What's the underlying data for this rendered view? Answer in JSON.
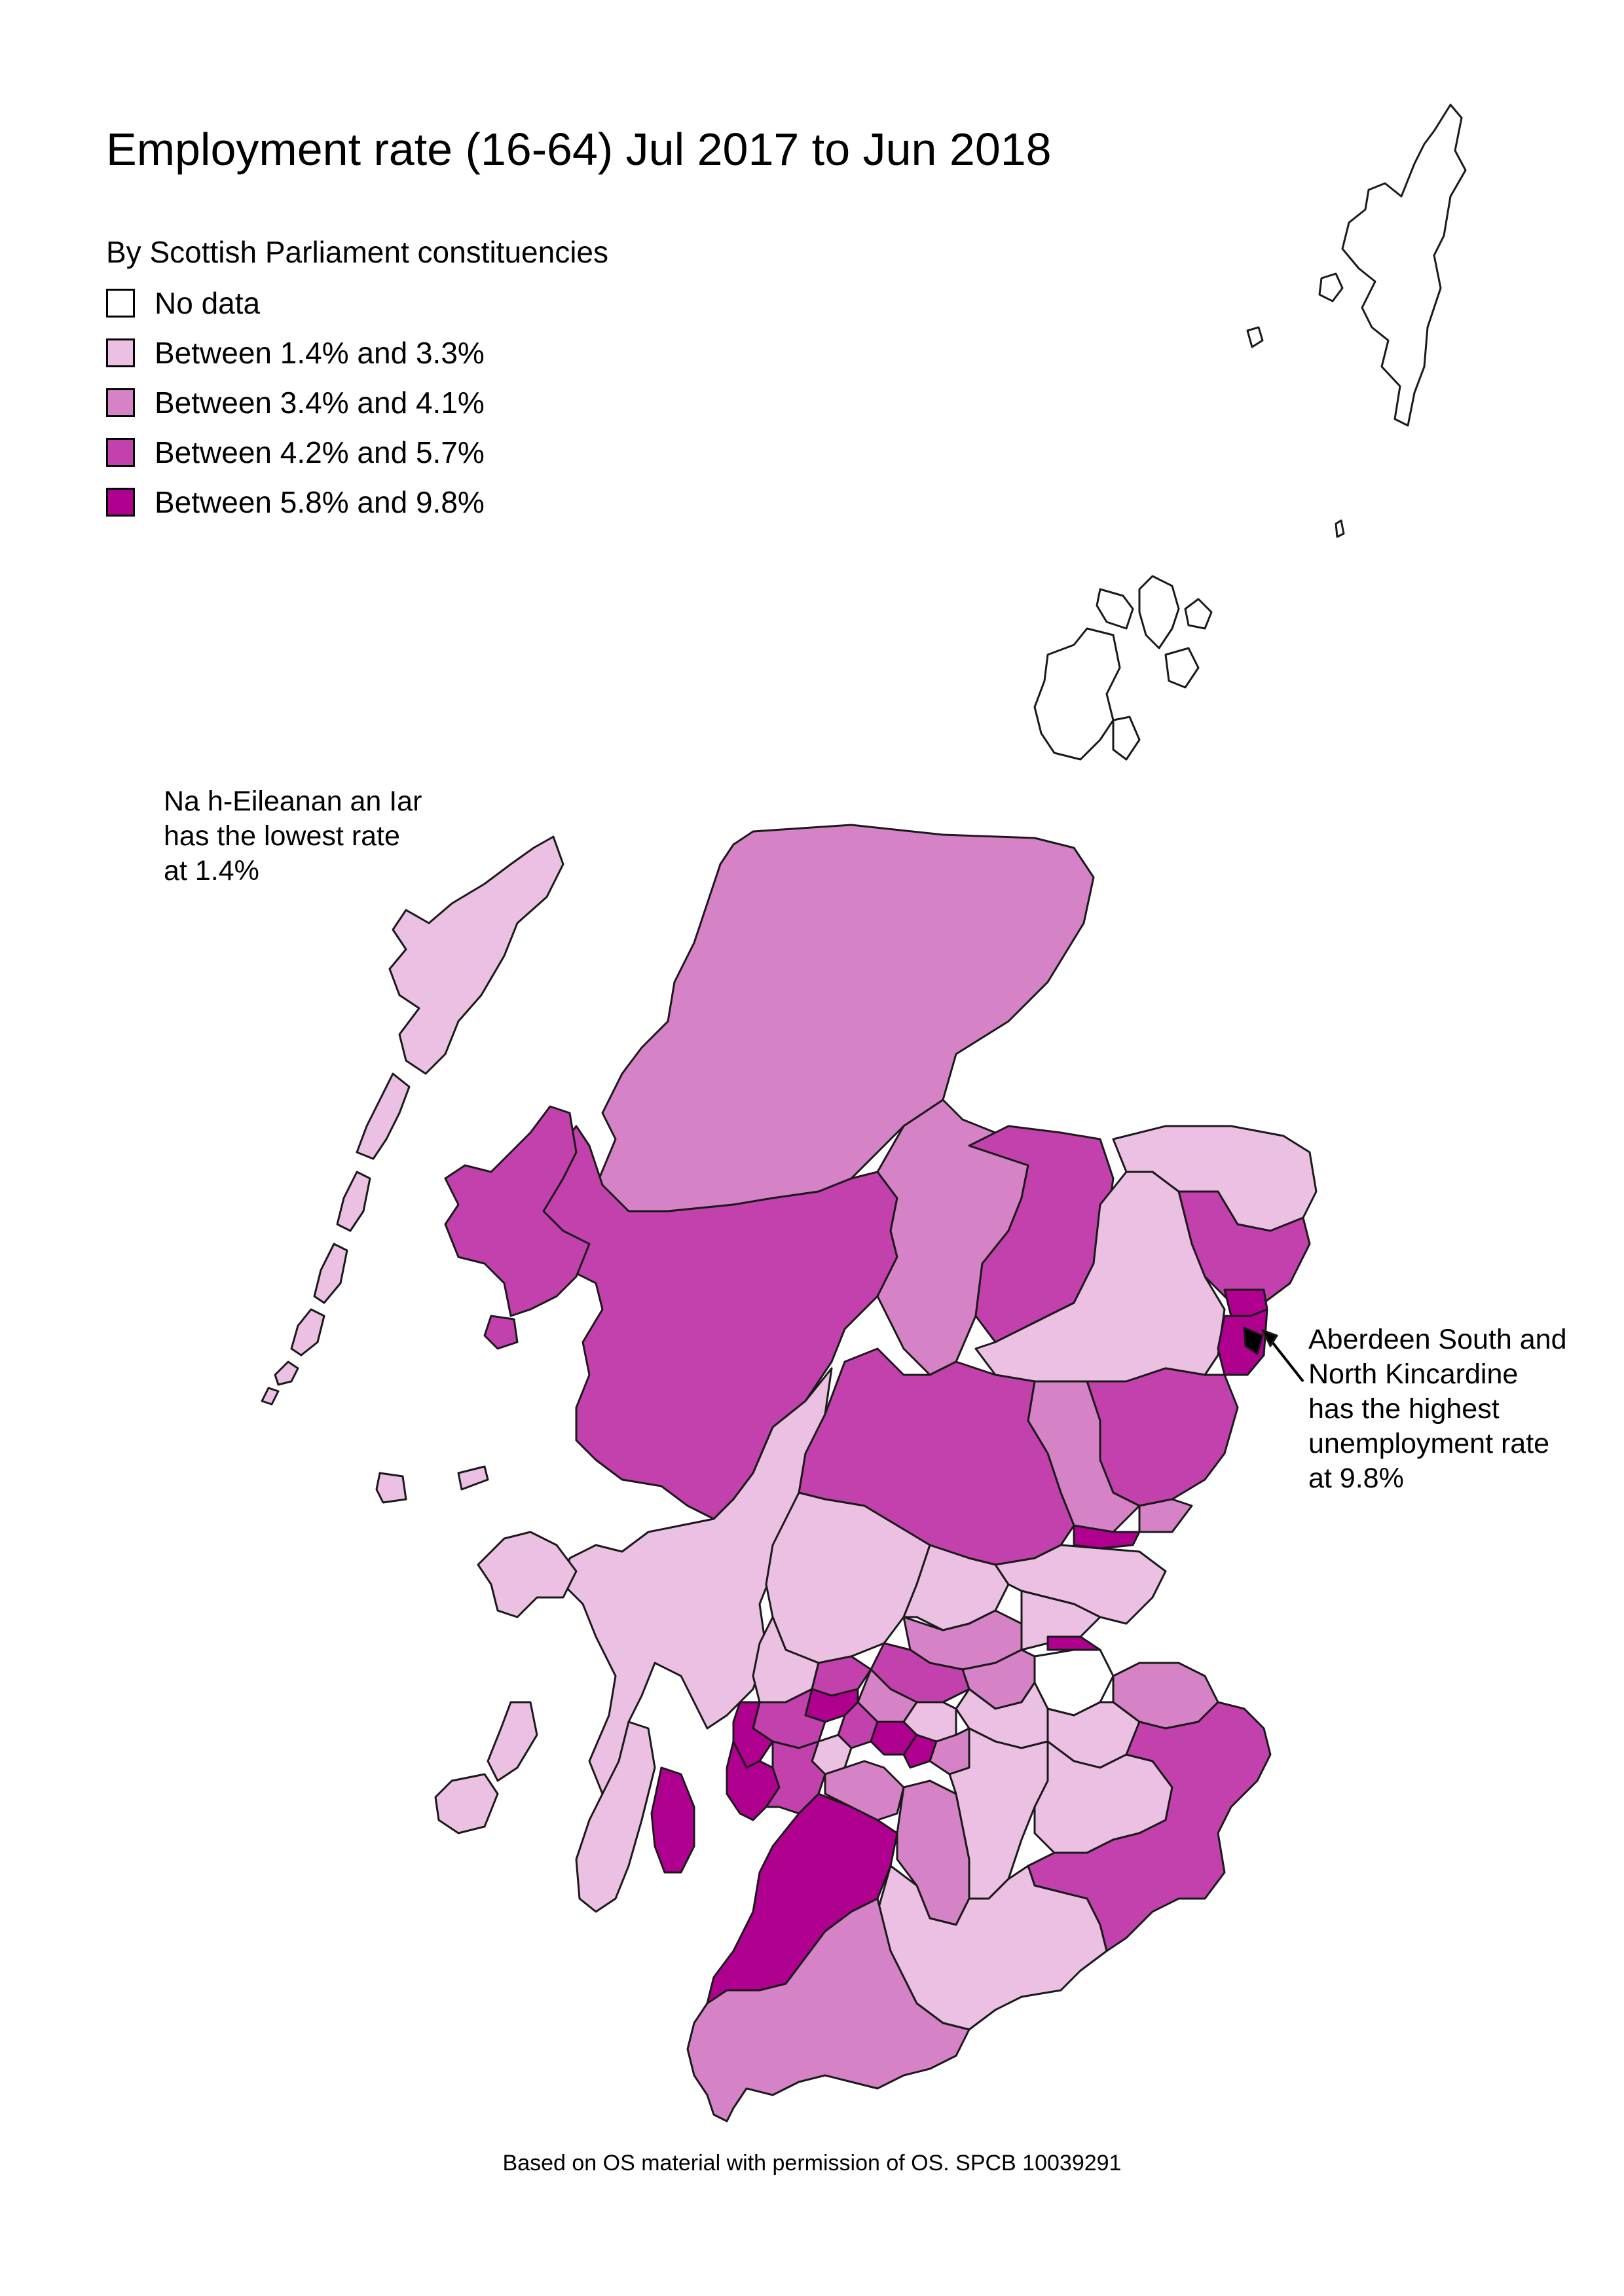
{
  "title": "Employment rate (16-64) Jul 2017 to Jun 2018",
  "subtitle": "By Scottish Parliament constituencies",
  "legend": {
    "items": [
      {
        "label": "No data",
        "color": "#ffffff"
      },
      {
        "label": "Between 1.4% and 3.3%",
        "color": "#ecc0e2"
      },
      {
        "label": "Between 3.4% and 4.1%",
        "color": "#d682c6"
      },
      {
        "label": "Between 4.2% and 5.7%",
        "color": "#c341ad"
      },
      {
        "label": "Between 5.8% and 9.8%",
        "color": "#b00090"
      }
    ]
  },
  "annotations": {
    "lowest": [
      "Na h-Eileanan an Iar",
      "has the lowest rate",
      "at 1.4%"
    ],
    "highest": [
      "Aberdeen South and",
      "North Kincardine",
      "has the highest",
      "unemployment rate",
      "at 9.8%"
    ]
  },
  "credit": "Based on OS material with permission of OS. SPCB 10039291",
  "colors": {
    "no_data": "#ffffff",
    "class_1": "#ecc0e2",
    "class_2": "#d682c6",
    "class_3": "#c341ad",
    "class_4": "#b00090",
    "arrow": "#000000"
  }
}
